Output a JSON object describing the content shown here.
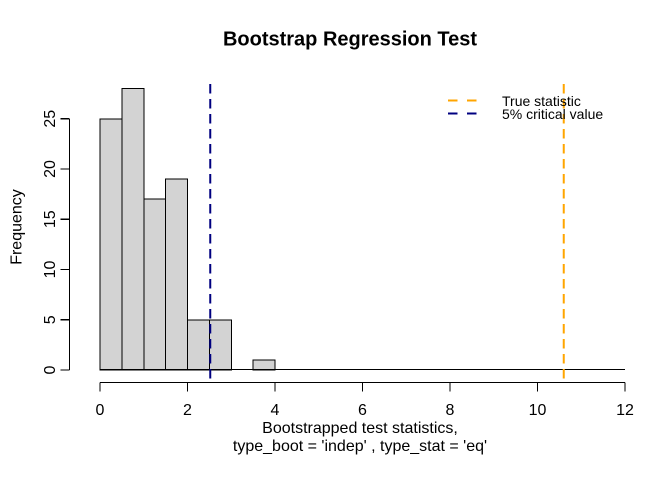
{
  "chart_data": {
    "type": "bar",
    "subtype": "histogram",
    "title": "Bootstrap Regression Test",
    "ylabel": "Frequency",
    "xlabel_lines": [
      "Bootstrapped test statistics,",
      "type_boot = 'indep' , type_stat = 'eq'"
    ],
    "bin_start": 0,
    "bin_width": 0.5,
    "counts": [
      25,
      28,
      17,
      19,
      5,
      5,
      0,
      1
    ],
    "x_ticks": [
      0,
      2,
      4,
      6,
      8,
      10,
      12
    ],
    "y_ticks": [
      0,
      5,
      10,
      15,
      20,
      25
    ],
    "xlim": [
      0,
      12
    ],
    "ylim": [
      0,
      28
    ],
    "grid": false,
    "legend_position": "topright",
    "colors": {
      "background": "#ffffff",
      "bar_fill": "#d3d3d3",
      "bar_stroke": "#000000",
      "axis": "#000000"
    },
    "vlines": [
      {
        "name": "true-statistic",
        "value": 10.6,
        "color": "#ffa500",
        "style": "dashed",
        "label": "True statistic"
      },
      {
        "name": "critical-value",
        "value": 2.52,
        "color": "#000080",
        "style": "dashed",
        "label": "5% critical value"
      }
    ],
    "legend": {
      "entries": [
        {
          "label": "True statistic",
          "color": "#ffa500",
          "style": "dashed"
        },
        {
          "label": "5% critical value",
          "color": "#000080",
          "style": "dashed"
        }
      ]
    }
  }
}
